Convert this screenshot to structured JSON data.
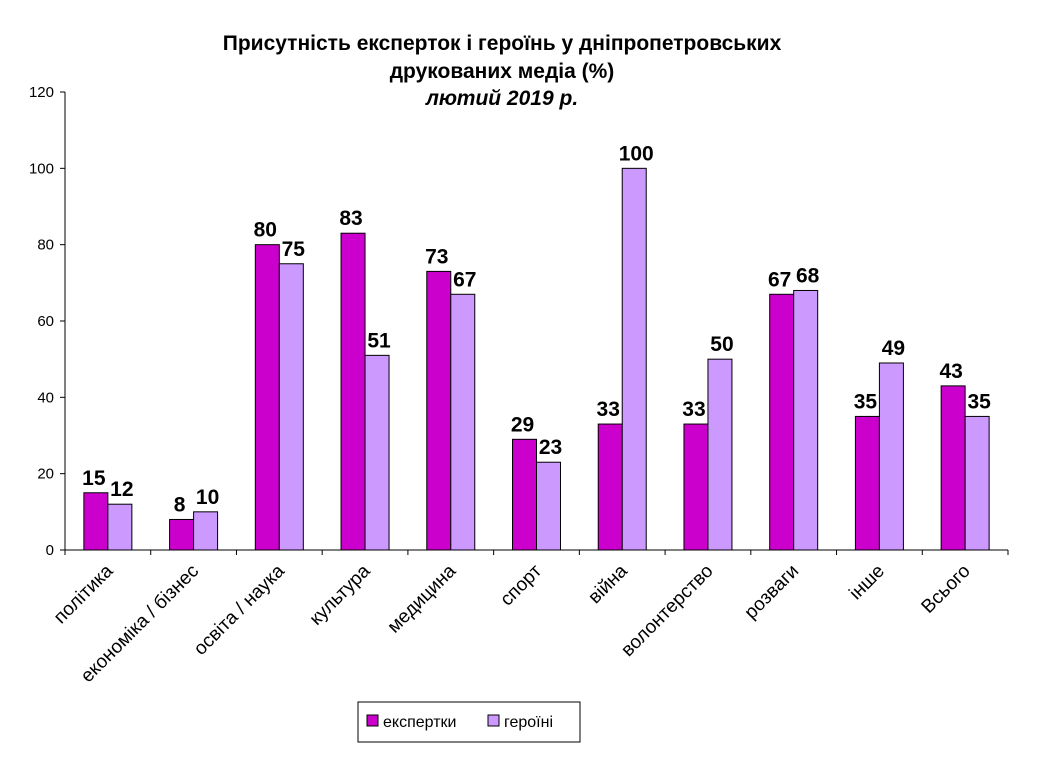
{
  "chart_data": {
    "type": "bar",
    "title_line1": "Присутність експерток і героїнь у дніпропетровських",
    "title_line2": "друкованих медіа (%)",
    "subtitle": "лютий 2019 р.",
    "xlabel": "",
    "ylabel": "",
    "ylim": [
      0,
      120
    ],
    "yticks": [
      "0",
      "20",
      "40",
      "60",
      "80",
      "100",
      "120"
    ],
    "grid": false,
    "legend_position": "bottom",
    "categories": [
      "політика",
      "економіка / бізнес",
      "освіта / наука",
      "культура",
      "медицина",
      "спорт",
      "війна",
      "волонтерство",
      "розваги",
      "інше",
      "Всього"
    ],
    "series": [
      {
        "name": "експертки",
        "color": "#cc00cc",
        "values": [
          15,
          8,
          80,
          83,
          73,
          29,
          33,
          33,
          67,
          35,
          43
        ]
      },
      {
        "name": "героїні",
        "color": "#cc99ff",
        "values": [
          12,
          10,
          75,
          51,
          67,
          23,
          100,
          50,
          68,
          49,
          35
        ]
      }
    ]
  }
}
